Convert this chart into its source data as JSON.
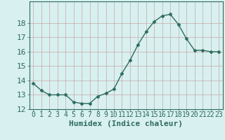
{
  "x": [
    0,
    1,
    2,
    3,
    4,
    5,
    6,
    7,
    8,
    9,
    10,
    11,
    12,
    13,
    14,
    15,
    16,
    17,
    18,
    19,
    20,
    21,
    22,
    23
  ],
  "y": [
    13.8,
    13.3,
    13.0,
    13.0,
    13.0,
    12.5,
    12.4,
    12.4,
    12.9,
    13.1,
    13.4,
    14.5,
    15.4,
    16.5,
    17.4,
    18.1,
    18.5,
    18.6,
    17.9,
    16.9,
    16.1,
    16.1,
    16.0,
    16.0
  ],
  "xlabel": "Humidex (Indice chaleur)",
  "ylim": [
    12,
    19
  ],
  "xlim": [
    -0.5,
    23.5
  ],
  "yticks": [
    12,
    13,
    14,
    15,
    16,
    17,
    18
  ],
  "xticks": [
    0,
    1,
    2,
    3,
    4,
    5,
    6,
    7,
    8,
    9,
    10,
    11,
    12,
    13,
    14,
    15,
    16,
    17,
    18,
    19,
    20,
    21,
    22,
    23
  ],
  "xtick_labels": [
    "0",
    "1",
    "2",
    "3",
    "4",
    "5",
    "6",
    "7",
    "8",
    "9",
    "10",
    "11",
    "12",
    "13",
    "14",
    "15",
    "16",
    "17",
    "18",
    "19",
    "20",
    "21",
    "22",
    "23"
  ],
  "line_color": "#2e6b5e",
  "marker": "D",
  "marker_size": 2.5,
  "background_color": "#d8f0f0",
  "grid_color": "#c8a8a8",
  "axes_color": "#2e6b5e",
  "tick_label_color": "#2e6b5e",
  "xlabel_color": "#2e6b5e",
  "xlabel_fontsize": 8,
  "tick_fontsize": 7
}
